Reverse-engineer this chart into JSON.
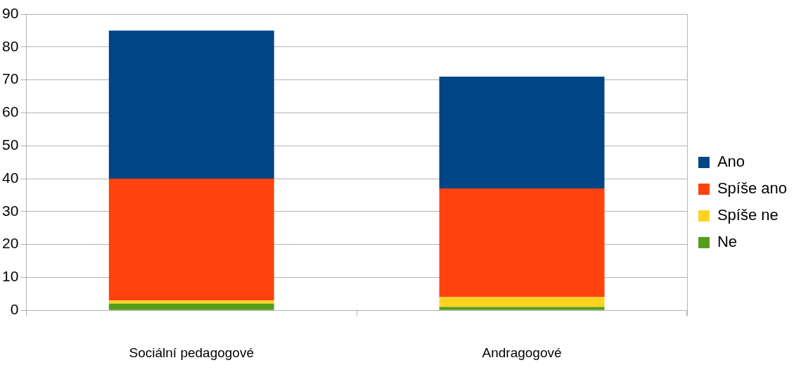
{
  "chart_data": {
    "type": "bar",
    "stacked": true,
    "categories": [
      "Sociální pedagogové",
      "Andragogové"
    ],
    "series": [
      {
        "name": "Ne",
        "color": "#579d1c",
        "values": [
          2,
          1
        ]
      },
      {
        "name": "Spíše ne",
        "color": "#ffd320",
        "values": [
          1,
          3
        ]
      },
      {
        "name": "Spíše ano",
        "color": "#ff420e",
        "values": [
          37,
          33
        ]
      },
      {
        "name": "Ano",
        "color": "#004586",
        "values": [
          45,
          34
        ]
      }
    ],
    "ylim": [
      0,
      90
    ],
    "yticks": [
      0,
      10,
      20,
      30,
      40,
      50,
      60,
      70,
      80,
      90
    ],
    "grid": "y",
    "legend": "right"
  }
}
